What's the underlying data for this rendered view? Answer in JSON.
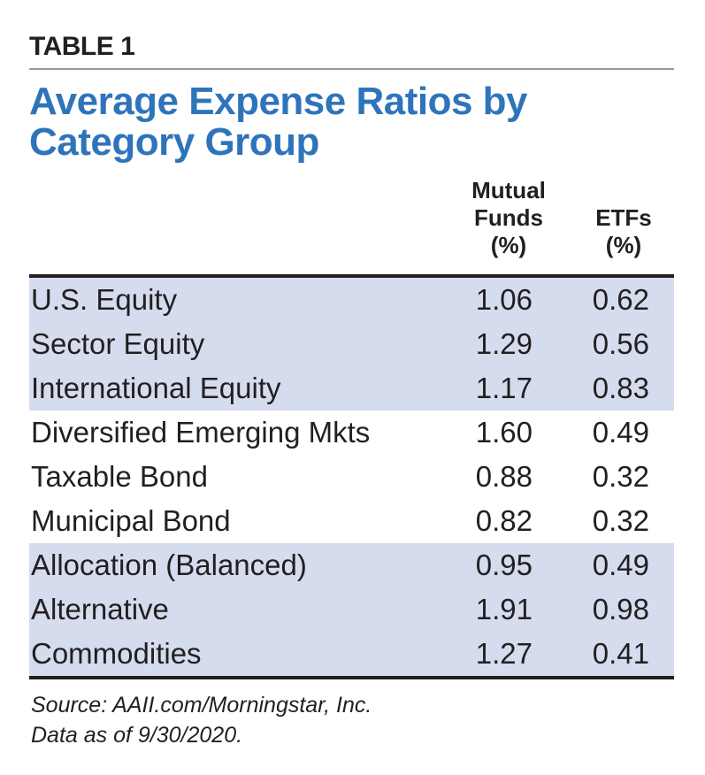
{
  "label": "TABLE 1",
  "title": "Average Expense Ratios by Category Group",
  "table": {
    "header": [
      [
        "Mutual",
        "Funds",
        "(%)"
      ],
      [
        "ETFs",
        "(%)"
      ]
    ],
    "rows": [
      [
        "U.S. Equity",
        "1.06",
        "0.62"
      ],
      [
        "Sector Equity",
        "1.29",
        "0.56"
      ],
      [
        "International Equity",
        "1.17",
        "0.83"
      ],
      [
        "Diversified Emerging Mkts",
        "1.60",
        "0.49"
      ],
      [
        "Taxable Bond",
        "0.88",
        "0.32"
      ],
      [
        "Municipal Bond",
        "0.82",
        "0.32"
      ],
      [
        "Allocation (Balanced)",
        "0.95",
        "0.49"
      ],
      [
        "Alternative",
        "1.91",
        "0.98"
      ],
      [
        "Commodities",
        "1.27",
        "0.41"
      ]
    ]
  },
  "footnote": [
    "Source: AAII.com/Morningstar, Inc.",
    "Data as of 9/30/2020."
  ]
}
